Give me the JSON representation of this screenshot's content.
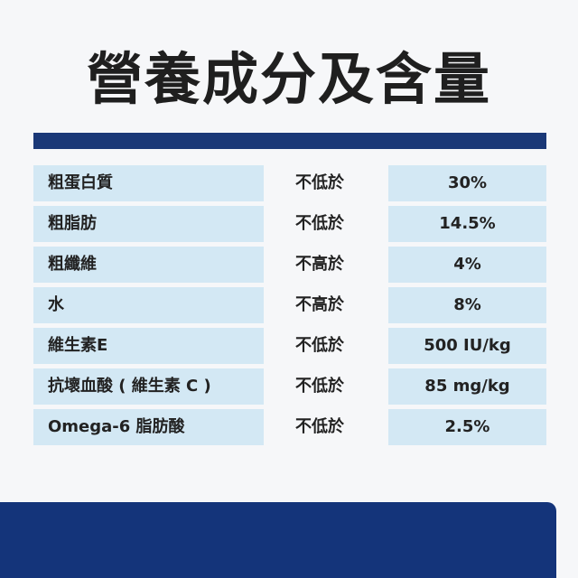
{
  "header": {
    "title": "營養成分及含量"
  },
  "table": {
    "rows": [
      [
        "粗蛋白質",
        "不低於",
        "30%"
      ],
      [
        "粗脂肪",
        "不低於",
        "14.5%"
      ],
      [
        "粗纖維",
        "不高於",
        "4%"
      ],
      [
        "水",
        "不高於",
        "8%"
      ],
      [
        "維生素E",
        "不低於",
        "500 IU/kg"
      ],
      [
        "抗壞血酸 ( 維生素 C )",
        "不低於",
        "85 mg/kg"
      ],
      [
        "Omega-6 脂肪酸",
        "不低於",
        "2.5%"
      ]
    ]
  }
}
